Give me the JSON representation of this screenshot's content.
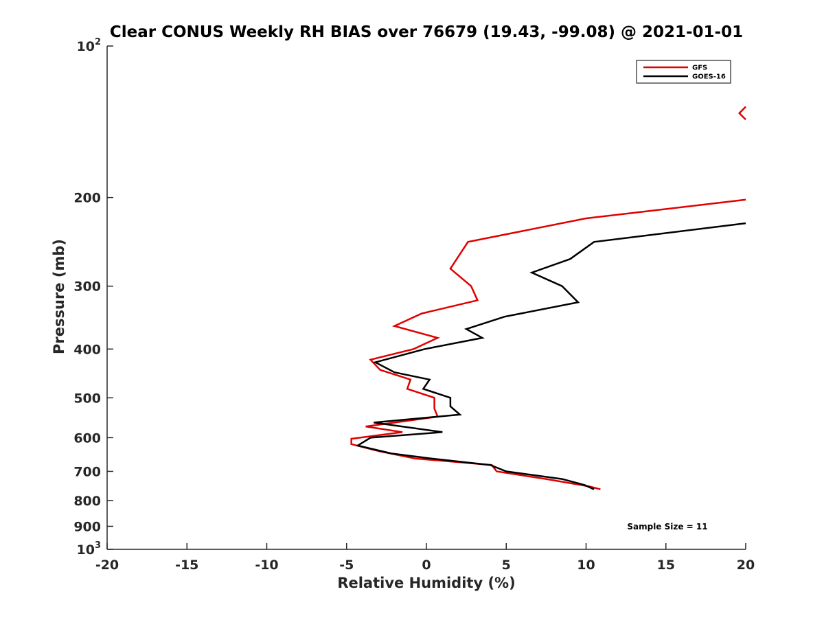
{
  "chart_data": {
    "type": "line",
    "title": "Clear CONUS Weekly RH BIAS over 76679 (19.43, -99.08) @ 2021-01-01",
    "xlabel": "Relative Humidity (%)",
    "ylabel": "Pressure (mb)",
    "xlim": [
      -20,
      20
    ],
    "ylim": [
      100,
      1000
    ],
    "y_scale": "log",
    "y_reversed": true,
    "grid": false,
    "legend_position": "top-right",
    "x_ticks": [
      "-20",
      "-15",
      "-10",
      "-5",
      "0",
      "5",
      "10",
      "15",
      "20"
    ],
    "y_ticks": [
      {
        "value": 100,
        "base": "10",
        "exp": "2"
      },
      {
        "value": 200,
        "label": "200"
      },
      {
        "value": 300,
        "label": "300"
      },
      {
        "value": 400,
        "label": "400"
      },
      {
        "value": 500,
        "label": "500"
      },
      {
        "value": 600,
        "label": "600"
      },
      {
        "value": 700,
        "label": "700"
      },
      {
        "value": 800,
        "label": "800"
      },
      {
        "value": 900,
        "label": "900"
      },
      {
        "value": 1000,
        "base": "10",
        "exp": "3"
      }
    ],
    "series": [
      {
        "name": "GFS",
        "color": "#e00000",
        "segments": [
          [
            [
              20,
              132
            ],
            [
              19.6,
              136
            ],
            [
              20,
              140
            ]
          ],
          [
            [
              20,
              202
            ],
            [
              10,
              220
            ],
            [
              2.6,
              245
            ],
            [
              1.5,
              277
            ],
            [
              2.8,
              300
            ],
            [
              3.2,
              320
            ],
            [
              -0.3,
              340
            ],
            [
              -2,
              360
            ],
            [
              0.7,
              380
            ],
            [
              -0.8,
              400
            ],
            [
              -3.5,
              420
            ],
            [
              -2.9,
              440
            ],
            [
              -1,
              460
            ],
            [
              -1.2,
              480
            ],
            [
              0.5,
              500
            ],
            [
              0.5,
              525
            ],
            [
              0.7,
              545
            ],
            [
              -3.8,
              570
            ],
            [
              -1.5,
              585
            ],
            [
              -4.7,
              603
            ],
            [
              -4.7,
              618
            ],
            [
              -3,
              638
            ],
            [
              -0.7,
              660
            ],
            [
              4.1,
              680
            ],
            [
              4.4,
              700
            ],
            [
              7.5,
              725
            ],
            [
              10.2,
              750
            ],
            [
              10.9,
              760
            ]
          ]
        ]
      },
      {
        "name": "GOES-16",
        "color": "#000000",
        "segments": [
          [
            [
              20,
              225
            ],
            [
              10.5,
              245
            ],
            [
              9,
              265
            ],
            [
              6.6,
              282
            ],
            [
              8.5,
              300
            ],
            [
              9.5,
              323
            ],
            [
              4.9,
              345
            ],
            [
              2.5,
              365
            ],
            [
              3.5,
              380
            ],
            [
              -0.1,
              400
            ],
            [
              -3.2,
              425
            ],
            [
              -2,
              445
            ],
            [
              0.2,
              460
            ],
            [
              -0.2,
              480
            ],
            [
              1.5,
              500
            ],
            [
              1.5,
              520
            ],
            [
              2.1,
              540
            ],
            [
              -3.3,
              560
            ],
            [
              1,
              585
            ],
            [
              -3.5,
              600
            ],
            [
              -4.3,
              622
            ],
            [
              -2.2,
              645
            ],
            [
              0.3,
              660
            ],
            [
              4,
              680
            ],
            [
              5,
              700
            ],
            [
              8.5,
              725
            ],
            [
              9.9,
              745
            ],
            [
              10.5,
              760
            ]
          ]
        ]
      }
    ],
    "annotation": "Sample Size = 11"
  }
}
